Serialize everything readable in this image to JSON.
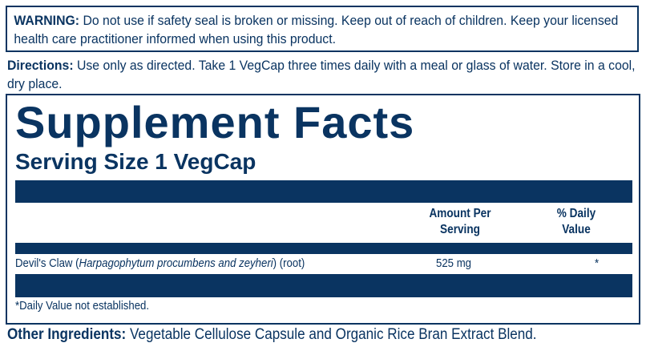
{
  "warning": {
    "label": "WARNING:",
    "text": " Do not use if safety seal is broken or missing. Keep out of reach of children. Keep your licensed health care practitioner informed when using this product."
  },
  "directions": {
    "label": "Directions:",
    "text": " Use only as directed. Take 1 VegCap three times daily with a meal or glass of water. Store in a cool, dry place."
  },
  "facts": {
    "title": "Supplement Facts",
    "serving_size": "Serving Size 1 VegCap",
    "columns": {
      "amount": "Amount Per Serving",
      "daily_value": "% Daily Value"
    },
    "rows": [
      {
        "name": "Devil's Claw (",
        "latin": "Harpagophytum procumbens and zeyheri",
        "suffix": ") (root)",
        "amount": "525 mg",
        "dv": "*"
      }
    ],
    "footnote": "*Daily Value not established."
  },
  "other": {
    "label": "Other Ingredients:",
    "text": " Vegetable Cellulose Capsule and Organic Rice Bran Extract Blend."
  },
  "colors": {
    "brand": "#0a3461"
  }
}
